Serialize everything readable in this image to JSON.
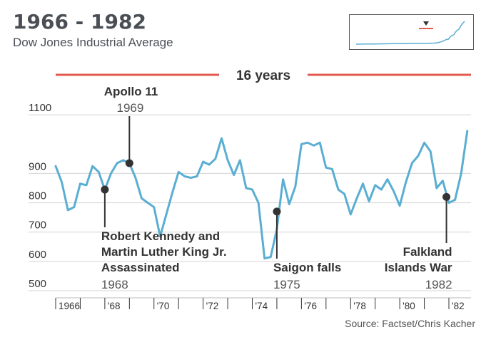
{
  "title": "1966 - 1982",
  "subtitle": "Dow Jones Industrial Average",
  "source": "Source: Factset/Chris Kacher",
  "span_label": "16 years",
  "colors": {
    "line": "#5aaed2",
    "span_bar": "#e15a4e",
    "marker": "#333333",
    "grid": "#d5d5d5",
    "text": "#333333",
    "muted_text": "#555555"
  },
  "chart_data": {
    "type": "line",
    "title": "1966 - 1982",
    "subtitle": "Dow Jones Industrial Average",
    "xlabel": "",
    "ylabel": "",
    "xlim": [
      1966,
      1982.9
    ],
    "ylim": [
      500,
      1200
    ],
    "grid": true,
    "y_ticks": [
      500,
      600,
      700,
      800,
      900,
      1100
    ],
    "x_tick_labels": [
      {
        "x": 1966,
        "label": "1966"
      },
      {
        "x": 1968,
        "label": "'68"
      },
      {
        "x": 1970,
        "label": "'70"
      },
      {
        "x": 1972,
        "label": "'72"
      },
      {
        "x": 1974,
        "label": "'74"
      },
      {
        "x": 1976,
        "label": "'76"
      },
      {
        "x": 1978,
        "label": "'78"
      },
      {
        "x": 1980,
        "label": "'80"
      },
      {
        "x": 1982,
        "label": "'82"
      }
    ],
    "series": [
      {
        "x": [
          1966.0,
          1966.25,
          1966.5,
          1966.75,
          1967.0,
          1967.25,
          1967.5,
          1967.75,
          1968.0,
          1968.25,
          1968.5,
          1968.75,
          1969.0,
          1969.25,
          1969.5,
          1969.75,
          1970.0,
          1970.25,
          1970.5,
          1970.75,
          1971.0,
          1971.25,
          1971.5,
          1971.75,
          1972.0,
          1972.25,
          1972.5,
          1972.75,
          1973.0,
          1973.25,
          1973.5,
          1973.75,
          1974.0,
          1974.25,
          1974.5,
          1974.75,
          1975.0,
          1975.25,
          1975.5,
          1975.75,
          1976.0,
          1976.25,
          1976.5,
          1976.75,
          1977.0,
          1977.25,
          1977.5,
          1977.75,
          1978.0,
          1978.25,
          1978.5,
          1978.75,
          1979.0,
          1979.25,
          1979.5,
          1979.75,
          1980.0,
          1980.25,
          1980.5,
          1980.75,
          1981.0,
          1981.25,
          1981.5,
          1981.75,
          1982.0,
          1982.25,
          1982.5,
          1982.75
        ],
        "values": [
          925,
          870,
          775,
          785,
          865,
          860,
          925,
          905,
          845,
          900,
          935,
          945,
          935,
          885,
          815,
          800,
          785,
          685,
          760,
          835,
          905,
          890,
          885,
          890,
          940,
          930,
          950,
          1020,
          945,
          895,
          945,
          850,
          845,
          800,
          610,
          615,
          710,
          880,
          795,
          855,
          1000,
          1005,
          995,
          1005,
          920,
          915,
          845,
          830,
          760,
          815,
          865,
          805,
          860,
          845,
          880,
          840,
          790,
          870,
          935,
          960,
          1005,
          975,
          850,
          875,
          800,
          810,
          900,
          1045
        ]
      }
    ],
    "span": {
      "from": 1966,
      "to": 1982.9,
      "label": "16 years"
    },
    "annotations": [
      {
        "x": 1968.0,
        "y": 845,
        "title": "Robert Kennedy and Martin Luther King Jr. Assassinated",
        "lines": [
          "Robert Kennedy and",
          "Martin Luther King Jr.",
          "Assassinated"
        ],
        "year": "1968",
        "position": "below",
        "align": "left"
      },
      {
        "x": 1969.0,
        "y": 935,
        "title": "Apollo 11",
        "lines": [
          "Apollo 11"
        ],
        "year": "1969",
        "position": "above",
        "align": "right"
      },
      {
        "x": 1975.0,
        "y": 770,
        "title": "Saigon falls",
        "lines": [
          "Saigon falls"
        ],
        "year": "1975",
        "position": "below",
        "align": "left"
      },
      {
        "x": 1981.9,
        "y": 820,
        "title": "Falkland Islands War",
        "lines": [
          "Falkland",
          "Islands War"
        ],
        "year": "1982",
        "position": "below",
        "align": "right"
      }
    ],
    "inset": {
      "type": "line",
      "description_level_marker": "triangle"
    }
  }
}
